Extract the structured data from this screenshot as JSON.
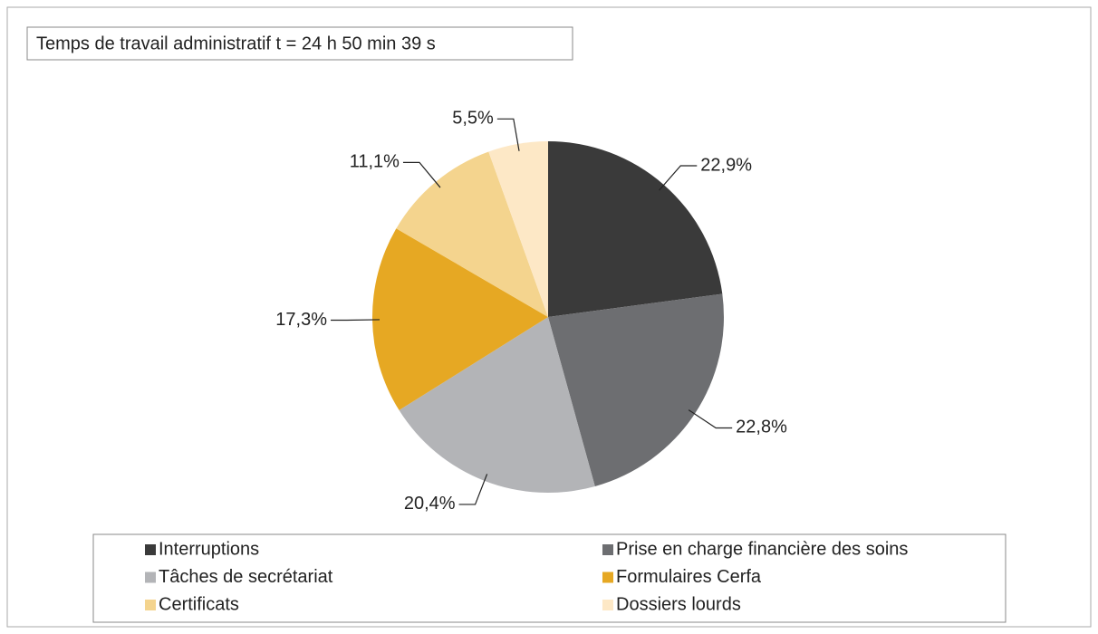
{
  "chart_data": {
    "type": "pie",
    "title": "Temps de travail administratif t = 24 h 50 min 39 s",
    "categories": [
      "Interruptions",
      "Prise en charge financière des soins",
      "Tâches de secrétariat",
      "Formulaires Cerfa",
      "Certificats",
      "Dossiers lourds"
    ],
    "values": [
      22.9,
      22.8,
      20.4,
      17.3,
      11.1,
      5.5
    ],
    "value_labels": [
      "22,9%",
      "22,8%",
      "20,4%",
      "17,3%",
      "11,1%",
      "5,5%"
    ],
    "colors": [
      "#3a3a3a",
      "#6d6e71",
      "#b3b4b7",
      "#e6a823",
      "#f4d48e",
      "#fde8c6"
    ],
    "legend": "bottom"
  }
}
